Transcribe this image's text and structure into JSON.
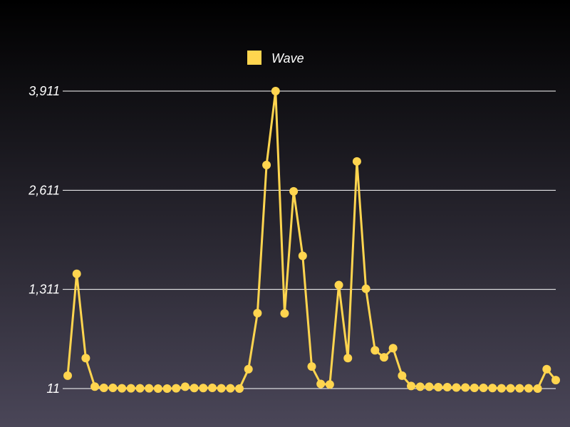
{
  "chart_data": {
    "type": "line",
    "series": [
      {
        "name": "Wave",
        "color": "#ffd54f",
        "values": [
          180,
          1516,
          410,
          37,
          20,
          20,
          15,
          15,
          15,
          15,
          11,
          11,
          15,
          35,
          18,
          18,
          20,
          15,
          15,
          11,
          265,
          1000,
          2942,
          3911,
          996,
          2597,
          1751,
          300,
          72,
          65,
          1368,
          410,
          2989,
          1319,
          512,
          420,
          540,
          180,
          45,
          35,
          35,
          30,
          30,
          25,
          25,
          20,
          20,
          18,
          15,
          15,
          15,
          15,
          11,
          265,
          122
        ]
      }
    ],
    "yticks": [
      11,
      1311,
      2611,
      3911
    ],
    "ytick_labels": [
      "11",
      "1,311",
      "2,611",
      "3,911"
    ],
    "ylim": [
      11,
      3911
    ],
    "grid": true,
    "legend": {
      "position": "top-center",
      "label": "Wave"
    }
  }
}
